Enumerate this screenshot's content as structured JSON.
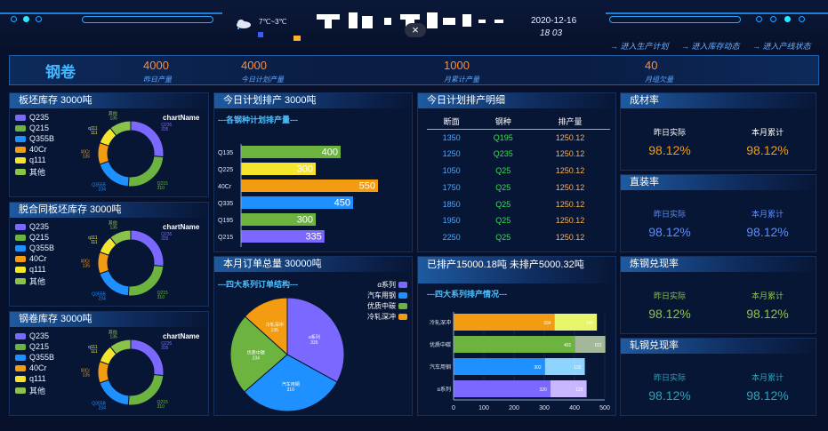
{
  "header": {
    "weather": "7℃~3℃",
    "date": "2020-12-16",
    "time": "18  03",
    "close_label": "×",
    "nav": [
      "→ 进入生产计划",
      "→ 进入库存动态",
      "→ 进入产线状态"
    ]
  },
  "kpi": {
    "title": "钢卷",
    "items": [
      {
        "value": "4000",
        "label": "昨日产量"
      },
      {
        "value": "4000",
        "label": "今日计划产量"
      },
      {
        "value": "1000",
        "label": "月累计产量"
      },
      {
        "value": "40",
        "label": "月组欠量"
      }
    ]
  },
  "donut_legend": [
    "Q235",
    "Q215",
    "Q355B",
    "40Cr",
    "q111",
    "其他"
  ],
  "donut_colors": [
    "#7b68ff",
    "#6cb43f",
    "#1e90ff",
    "#f39c12",
    "#f5e52d",
    "#8bc34a"
  ],
  "donut_panels": [
    {
      "title": "板坯库存  3000吨",
      "chart_name": "chartName",
      "chart_data": {
        "type": "pie",
        "hole": true,
        "categories": [
          "Q235",
          "Q215",
          "Q355B",
          "40Cr",
          "q111",
          "其他"
        ],
        "values": [
          335,
          310,
          234,
          135,
          111,
          135
        ]
      }
    },
    {
      "title": "脱合同板坯库存  3000吨",
      "chart_name": "chartName",
      "chart_data": {
        "type": "pie",
        "hole": true,
        "categories": [
          "Q235",
          "Q215",
          "Q355B",
          "40Cr",
          "q111",
          "其他"
        ],
        "values": [
          335,
          310,
          234,
          135,
          111,
          135
        ]
      }
    },
    {
      "title": "钢卷库存  3000吨",
      "chart_name": "chartName",
      "chart_data": {
        "type": "pie",
        "hole": true,
        "categories": [
          "Q235",
          "Q215",
          "Q355B",
          "40Cr",
          "q111",
          "其他"
        ],
        "values": [
          335,
          310,
          234,
          135,
          111,
          135
        ]
      }
    }
  ],
  "plan": {
    "title": "今日计划排产  3000吨",
    "subtitle": "---各钢种计划排产量---",
    "chart_data": {
      "type": "bar",
      "orientation": "horizontal",
      "categories": [
        "Q135",
        "Q225",
        "40Cr",
        "Q335",
        "Q195",
        "Q215"
      ],
      "values": [
        400,
        300,
        550,
        450,
        300,
        335
      ],
      "colors": [
        "#6cb43f",
        "#f5e52d",
        "#f39c12",
        "#1e90ff",
        "#6cb43f",
        "#7b68ff"
      ],
      "xlim": [
        0,
        600
      ]
    }
  },
  "detail": {
    "title": "今日计划排产明细",
    "headers": [
      "断面",
      "钢种",
      "排产量"
    ],
    "rows": [
      [
        "1350",
        "Q195",
        "1250.12"
      ],
      [
        "1250",
        "Q235",
        "1250.12"
      ],
      [
        "1050",
        "Q25",
        "1250.12"
      ],
      [
        "1750",
        "Q25",
        "1250.12"
      ],
      [
        "1850",
        "Q25",
        "1250.12"
      ],
      [
        "1950",
        "Q25",
        "1250.12"
      ],
      [
        "2250",
        "Q25",
        "1250.12"
      ]
    ]
  },
  "orders": {
    "title": "本月订单总量  30000吨",
    "subtitle": "---四大系列订单结构---",
    "chart_data": {
      "type": "pie",
      "categories": [
        "α系列",
        "汽车用钢",
        "优质中碳",
        "冷轧深冲"
      ],
      "values": [
        335,
        310,
        234,
        135
      ],
      "colors": [
        "#7b68ff",
        "#1e90ff",
        "#6cb43f",
        "#f39c12"
      ]
    }
  },
  "scheduled": {
    "title": "已排产15000.18吨    未排产5000.32吨",
    "subtitle": "---四大系列排产情况---",
    "chart_data": {
      "type": "bar",
      "orientation": "horizontal",
      "stacked": true,
      "categories": [
        "冷轧深冲",
        "优质中碳",
        "汽车用钢",
        "α系列"
      ],
      "series": [
        {
          "values": [
            334,
            401,
            302,
            320
          ],
          "colors": [
            "#f39c12",
            "#6cb43f",
            "#1e90ff",
            "#7b68ff"
          ]
        },
        {
          "values": [
            140,
            101,
            132,
            120
          ],
          "colors": [
            "#e6f56a",
            "#a3b89a",
            "#8fd4ff",
            "#c8b6ff"
          ]
        }
      ],
      "xticks": [
        "0",
        "100",
        "200",
        "300",
        "400",
        "500"
      ],
      "xlim": [
        0,
        500
      ]
    }
  },
  "stats": [
    {
      "title": "成材率",
      "labels": [
        "昨日实际",
        "本月累计"
      ],
      "values": [
        "98.12%",
        "98.12%"
      ],
      "label_color": "#ffffff",
      "value_color": "#f39c12"
    },
    {
      "title": "直装率",
      "labels": [
        "昨日实际",
        "本月累计"
      ],
      "values": [
        "98.12%",
        "98.12%"
      ],
      "label_color": "#5a8dff",
      "value_color": "#5a8dff"
    },
    {
      "title": "炼钢兑现率",
      "labels": [
        "昨日实际",
        "本月累计"
      ],
      "values": [
        "98.12%",
        "98.12%"
      ],
      "label_color": "#8bc34a",
      "value_color": "#8bc34a"
    },
    {
      "title": "轧钢兑现率",
      "labels": [
        "昨日实际",
        "本月累计"
      ],
      "values": [
        "98.12%",
        "98.12%"
      ],
      "label_color": "#2ba4b8",
      "value_color": "#2ba4b8"
    }
  ]
}
